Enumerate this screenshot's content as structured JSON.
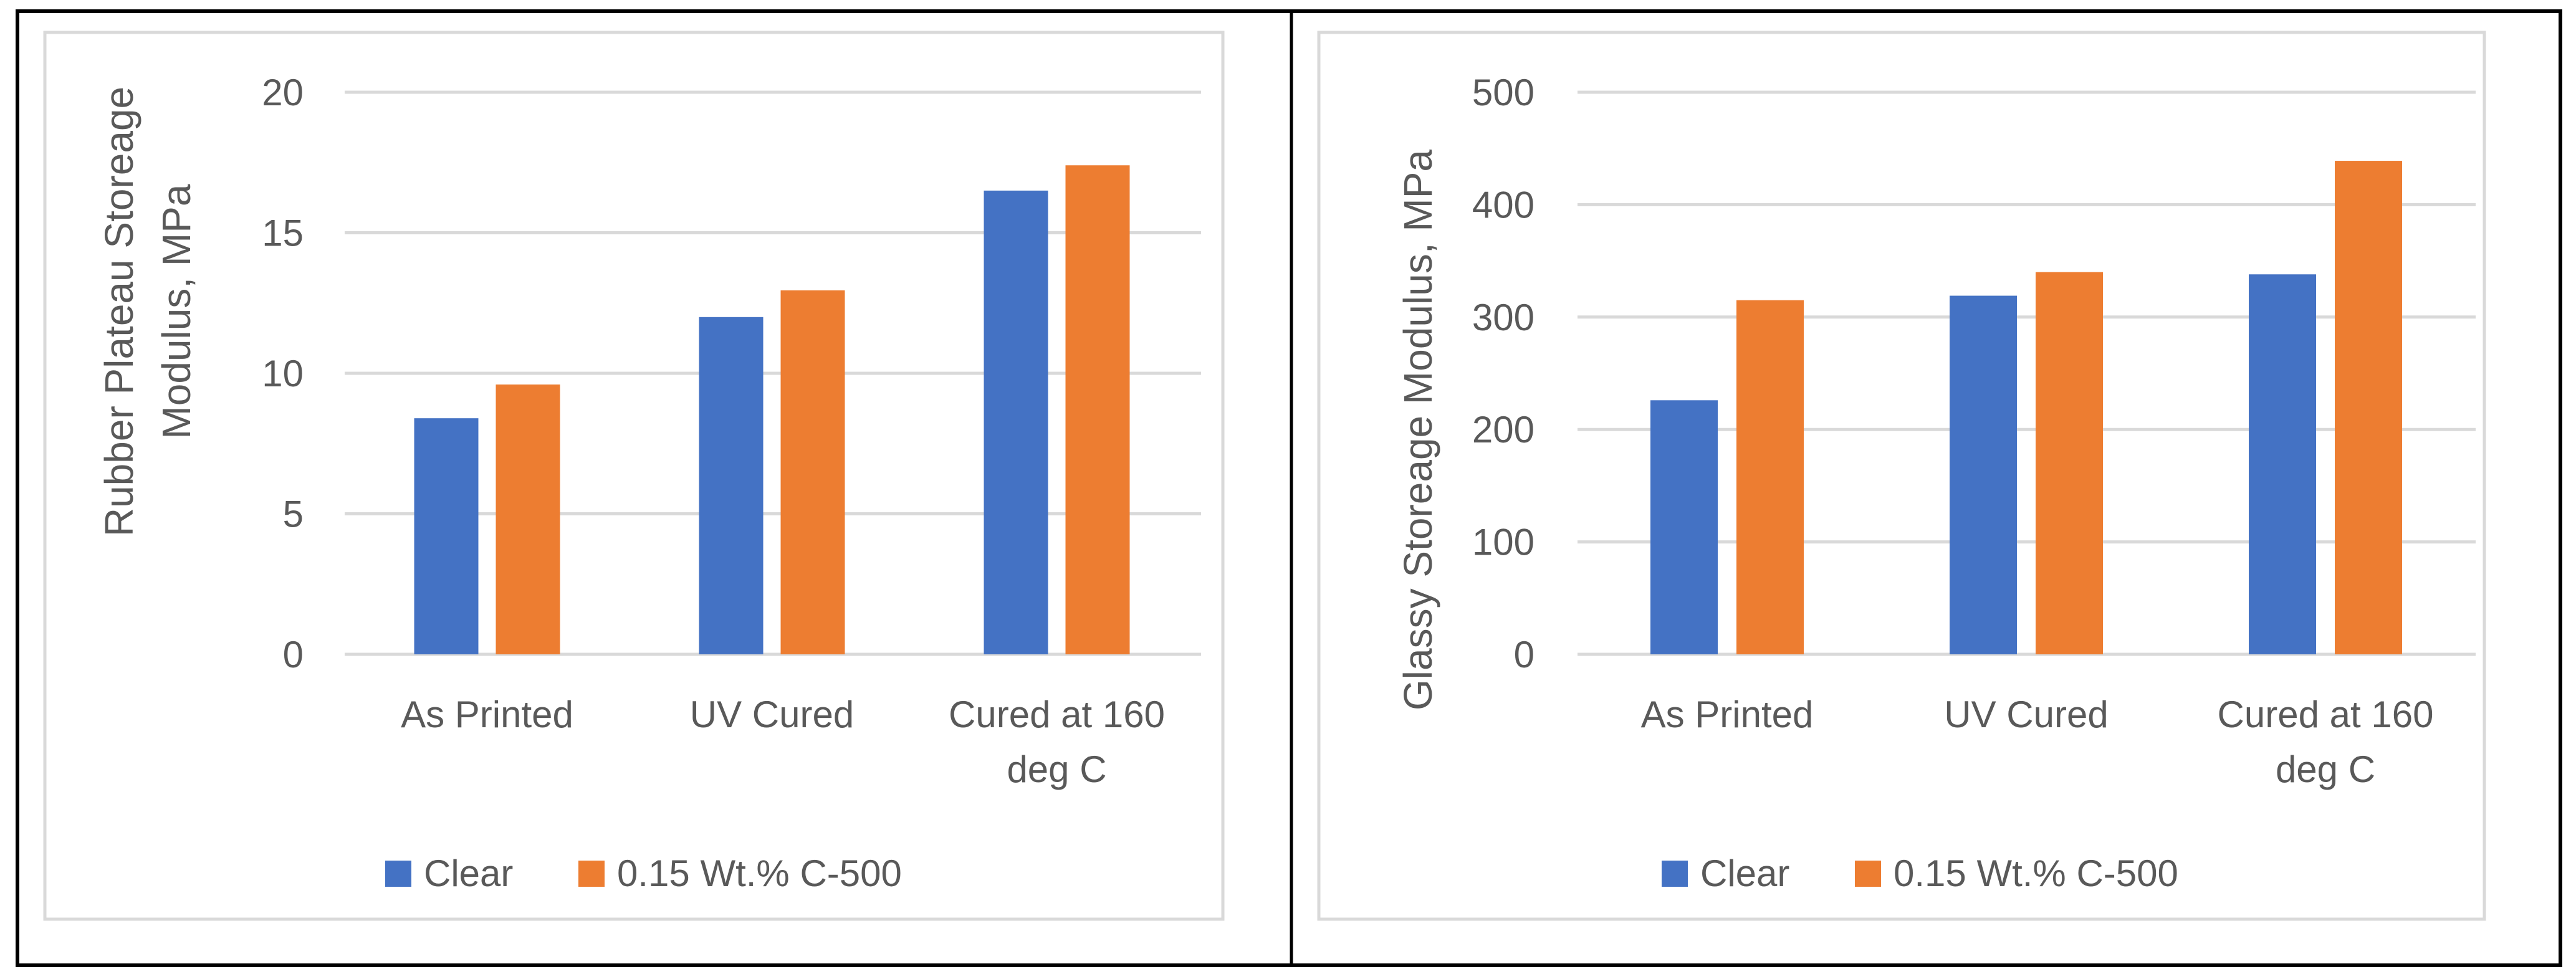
{
  "series_colors": {
    "Clear": "#4472c4",
    "0.15 Wt.% C-500": "#ed7d31"
  },
  "chart_data": [
    {
      "type": "bar",
      "title": "",
      "categories": [
        [
          "As Printed"
        ],
        [
          "UV Cured"
        ],
        [
          "Cured at 160",
          "deg C"
        ]
      ],
      "series": [
        {
          "name": "Clear",
          "color": "#4472c4",
          "values": [
            8.4,
            12.0,
            16.5
          ]
        },
        {
          "name": "0.15 Wt.% C-500",
          "color": "#ed7d31",
          "values": [
            9.6,
            12.95,
            17.4
          ]
        }
      ],
      "xlabel": "",
      "ylabel_lines": [
        "Rubber Plateau Storeage",
        "Modulus, MPa"
      ],
      "ylim": [
        0,
        20
      ],
      "yticks": [
        0,
        5,
        10,
        15,
        20
      ],
      "grid": true,
      "legend": "bottom"
    },
    {
      "type": "bar",
      "title": "",
      "categories": [
        [
          "As Printed"
        ],
        [
          "UV Cured"
        ],
        [
          "Cured at 160",
          "deg C"
        ]
      ],
      "series": [
        {
          "name": "Clear",
          "color": "#4472c4",
          "values": [
            226,
            319,
            338
          ]
        },
        {
          "name": "0.15 Wt.% C-500",
          "color": "#ed7d31",
          "values": [
            315,
            340,
            439
          ]
        }
      ],
      "xlabel": "",
      "ylabel_lines": [
        "Glassy Storeage Modulus, MPa"
      ],
      "ylim": [
        0,
        500
      ],
      "yticks": [
        0,
        100,
        200,
        300,
        400,
        500
      ],
      "grid": true,
      "legend": "bottom"
    }
  ]
}
